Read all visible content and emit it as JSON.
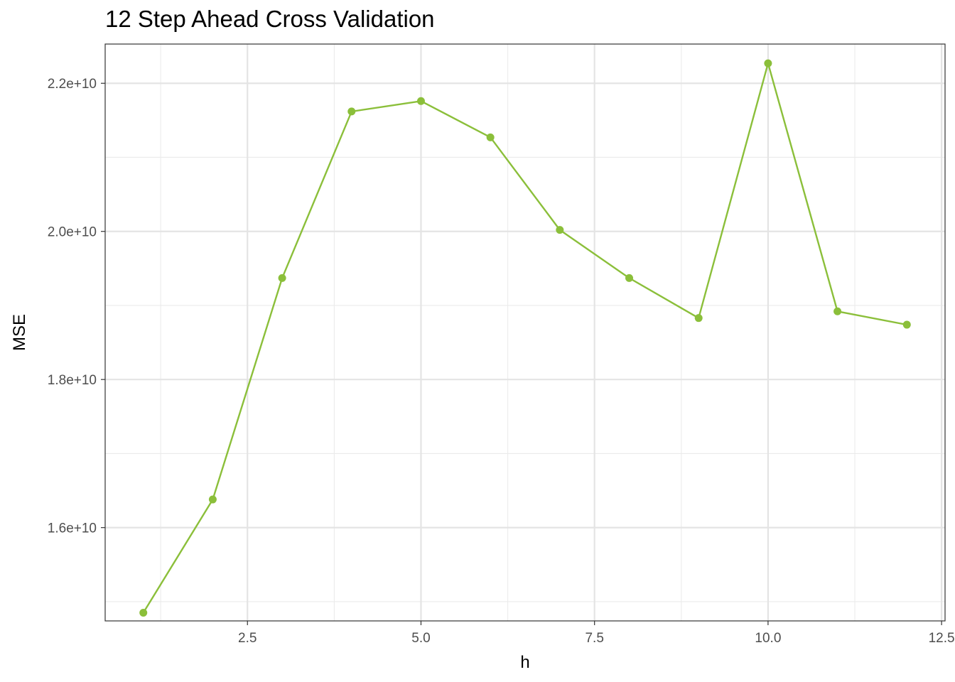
{
  "chart_data": {
    "type": "line",
    "title": "12 Step Ahead Cross Validation",
    "xlabel": "h",
    "ylabel": "MSE",
    "xlim": [
      0.45,
      12.55
    ],
    "ylim": [
      14740000000,
      22530000000
    ],
    "x_ticks": [
      2.5,
      5.0,
      7.5,
      10.0,
      12.5
    ],
    "x_tick_labels": [
      "2.5",
      "5.0",
      "7.5",
      "10.0",
      "12.5"
    ],
    "y_ticks": [
      16000000000,
      18000000000,
      20000000000,
      22000000000
    ],
    "y_tick_labels": [
      "1.6e+10",
      "1.8e+10",
      "2.0e+10",
      "2.2e+10"
    ],
    "grid": true,
    "line_color": "#8bbf3a",
    "series": [
      {
        "x": [
          1,
          2,
          3,
          4,
          5,
          6,
          7,
          8,
          9,
          10,
          11,
          12
        ],
        "values": [
          14850000000,
          16380000000,
          19370000000,
          21620000000,
          21760000000,
          21270000000,
          20020000000,
          19370000000,
          18830000000,
          22270000000,
          18920000000,
          18740000000
        ]
      }
    ]
  }
}
